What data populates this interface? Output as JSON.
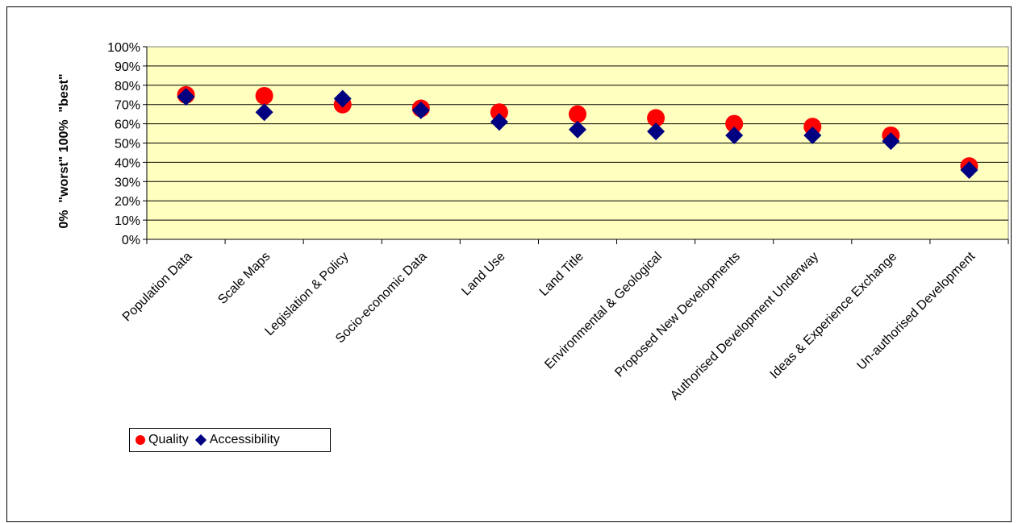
{
  "chart_data": {
    "type": "scatter",
    "ylabel": "0%  \"worst\" 100%  \"best\"",
    "ylim": [
      0,
      100
    ],
    "yticks": [
      "0%",
      "10%",
      "20%",
      "30%",
      "40%",
      "50%",
      "60%",
      "70%",
      "80%",
      "90%",
      "100%"
    ],
    "grid": true,
    "legend_position": "bottom-left",
    "plot_background": "#FFFFC0",
    "categories": [
      "Population Data",
      "Scale Maps",
      "Legislation & Policy",
      "Socio-economic Data",
      "Land Use",
      "Land Title",
      "Environmental & Geological",
      "Proposed New Developments",
      "Authorised Development Underway",
      "Ideas & Experience Exchange",
      "Un-authorised Development"
    ],
    "series": [
      {
        "name": "Quality",
        "marker": "circle",
        "color": "#FF0000",
        "values": [
          75,
          74.5,
          70,
          68,
          66,
          65,
          63,
          60,
          58.5,
          54,
          38
        ]
      },
      {
        "name": "Accessibility",
        "marker": "diamond",
        "color": "#000080",
        "values": [
          74,
          66,
          73,
          67,
          61,
          57,
          56,
          54,
          54,
          51,
          36
        ]
      }
    ]
  }
}
